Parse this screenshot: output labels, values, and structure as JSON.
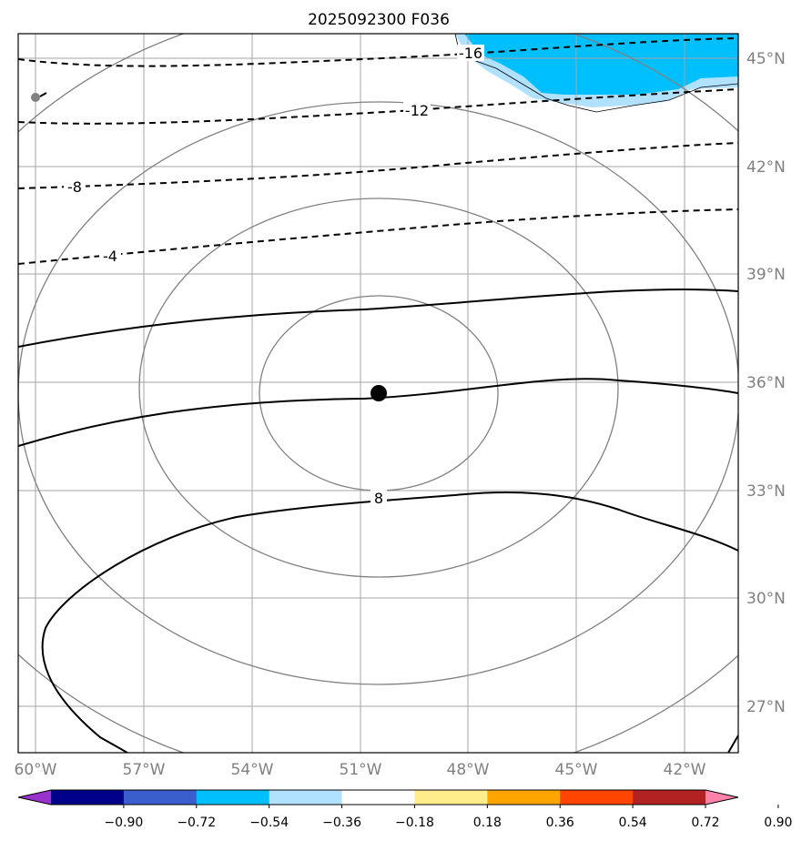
{
  "title": "2025092300 F036",
  "map": {
    "lat_labels": [
      "45°N",
      "42°N",
      "39°N",
      "36°N",
      "33°N",
      "30°N",
      "27°N"
    ],
    "lon_labels": [
      "60°W",
      "57°W",
      "54°W",
      "51°W",
      "48°W",
      "45°W",
      "42°W"
    ],
    "contour_labels": [
      "-16",
      "-12",
      "-8",
      "-4",
      "8"
    ],
    "range_ring_color": "#808080",
    "center_marker_color": "#000000"
  },
  "colorbar": {
    "colors": [
      "#9932cc",
      "#00008b",
      "#3a5fcd",
      "#00bfff",
      "#b0e2ff",
      "#ffffff",
      "#ffec8b",
      "#ffa500",
      "#ff4500",
      "#b22222",
      "#ff82ab"
    ],
    "tick_labels": [
      "−0.90",
      "−0.72",
      "−0.54",
      "−0.36",
      "−0.18",
      "0.18",
      "0.36",
      "0.54",
      "0.72",
      "0.90"
    ]
  }
}
